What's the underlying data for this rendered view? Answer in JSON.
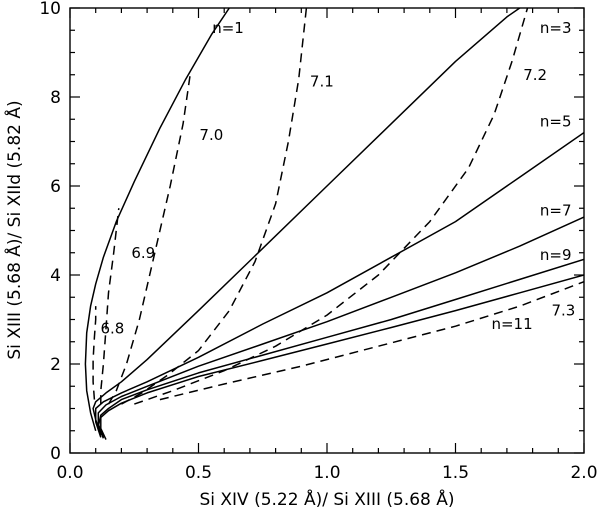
{
  "chart_data": {
    "type": "line",
    "title": "",
    "xlabel": "Si XIV (5.22 Å)/ Si XIII (5.68 Å)",
    "ylabel": "Si XIII (5.68 Å)/ Si XIId (5.82 Å)",
    "xlim": [
      0,
      2.0
    ],
    "ylim": [
      0,
      10
    ],
    "x_ticks": [
      0.0,
      0.5,
      1.0,
      1.5,
      2.0
    ],
    "x_tick_labels": [
      "0.0",
      "0.5",
      "1.0",
      "1.5",
      "2.0"
    ],
    "y_ticks": [
      0,
      2,
      4,
      6,
      8,
      10
    ],
    "y_tick_labels": [
      "0",
      "2",
      "4",
      "6",
      "8",
      "10"
    ],
    "grid": false,
    "legend": "none",
    "series": [
      {
        "group": "n",
        "label": "n=1",
        "style": "solid",
        "x": [
          0.1,
          0.08,
          0.065,
          0.06,
          0.065,
          0.08,
          0.1,
          0.13,
          0.18,
          0.25,
          0.35,
          0.45,
          0.55,
          0.62
        ],
        "y": [
          0.5,
          0.9,
          1.4,
          2.0,
          2.7,
          3.3,
          3.8,
          4.4,
          5.2,
          6.1,
          7.3,
          8.4,
          9.4,
          10.0
        ]
      },
      {
        "group": "n",
        "label": "n=3",
        "style": "solid",
        "x": [
          0.12,
          0.1,
          0.09,
          0.1,
          0.14,
          0.2,
          0.3,
          0.5,
          0.75,
          1.0,
          1.25,
          1.5,
          1.7,
          1.8
        ],
        "y": [
          0.4,
          0.75,
          1.0,
          1.15,
          1.35,
          1.6,
          2.1,
          3.2,
          4.6,
          6.0,
          7.4,
          8.8,
          9.8,
          10.2
        ]
      },
      {
        "group": "n",
        "label": "n=5",
        "style": "solid",
        "x": [
          0.12,
          0.1,
          0.1,
          0.13,
          0.2,
          0.3,
          0.5,
          0.75,
          1.0,
          1.25,
          1.5,
          1.75,
          2.0
        ],
        "y": [
          0.35,
          0.7,
          1.0,
          1.15,
          1.35,
          1.6,
          2.15,
          2.9,
          3.6,
          4.4,
          5.2,
          6.2,
          7.2
        ]
      },
      {
        "group": "n",
        "label": "n=7",
        "style": "solid",
        "x": [
          0.13,
          0.11,
          0.11,
          0.14,
          0.2,
          0.3,
          0.5,
          0.75,
          1.0,
          1.25,
          1.5,
          1.75,
          2.0
        ],
        "y": [
          0.35,
          0.65,
          0.9,
          1.08,
          1.27,
          1.5,
          1.95,
          2.45,
          2.95,
          3.5,
          4.05,
          4.65,
          5.3
        ]
      },
      {
        "group": "n",
        "label": "n=9",
        "style": "solid",
        "x": [
          0.13,
          0.11,
          0.12,
          0.15,
          0.2,
          0.3,
          0.5,
          0.75,
          1.0,
          1.25,
          1.5,
          1.75,
          2.0
        ],
        "y": [
          0.33,
          0.6,
          0.85,
          1.0,
          1.2,
          1.42,
          1.8,
          2.2,
          2.6,
          3.0,
          3.45,
          3.9,
          4.35
        ]
      },
      {
        "group": "n",
        "label": "n=11",
        "style": "solid",
        "x": [
          0.14,
          0.12,
          0.12,
          0.15,
          0.2,
          0.3,
          0.5,
          0.75,
          1.0,
          1.25,
          1.5,
          1.75,
          2.0
        ],
        "y": [
          0.3,
          0.55,
          0.8,
          0.95,
          1.12,
          1.35,
          1.72,
          2.08,
          2.45,
          2.82,
          3.2,
          3.6,
          4.0
        ]
      },
      {
        "group": "T",
        "label": "6.8",
        "style": "dashed",
        "x": [
          0.095,
          0.09,
          0.09,
          0.095,
          0.1,
          0.1
        ],
        "y": [
          1.2,
          1.6,
          2.1,
          2.6,
          3.0,
          3.3
        ]
      },
      {
        "group": "T",
        "label": "6.9",
        "style": "dashed",
        "x": [
          0.12,
          0.12,
          0.13,
          0.14,
          0.15,
          0.17,
          0.19
        ],
        "y": [
          1.1,
          1.4,
          2.0,
          2.8,
          3.6,
          4.5,
          5.5
        ]
      },
      {
        "group": "T",
        "label": "7.0",
        "style": "dashed",
        "x": [
          0.15,
          0.18,
          0.22,
          0.27,
          0.33,
          0.39,
          0.44,
          0.47
        ],
        "y": [
          1.1,
          1.4,
          2.0,
          3.0,
          4.5,
          6.0,
          7.4,
          8.6
        ]
      },
      {
        "group": "T",
        "label": "7.1",
        "style": "dashed",
        "x": [
          0.2,
          0.28,
          0.38,
          0.5,
          0.62,
          0.72,
          0.8,
          0.85,
          0.89,
          0.92
        ],
        "y": [
          1.1,
          1.35,
          1.75,
          2.3,
          3.2,
          4.3,
          5.6,
          7.0,
          8.4,
          10.0
        ]
      },
      {
        "group": "T",
        "label": "7.2",
        "style": "dashed",
        "x": [
          0.25,
          0.4,
          0.6,
          0.8,
          1.0,
          1.2,
          1.4,
          1.55,
          1.65,
          1.72,
          1.78
        ],
        "y": [
          1.1,
          1.4,
          1.85,
          2.4,
          3.1,
          4.0,
          5.2,
          6.4,
          7.6,
          8.8,
          10.0
        ]
      },
      {
        "group": "T",
        "label": "7.3",
        "style": "dashed",
        "x": [
          0.35,
          0.6,
          0.9,
          1.2,
          1.5,
          1.75,
          2.0
        ],
        "y": [
          1.2,
          1.55,
          1.95,
          2.4,
          2.85,
          3.3,
          3.85
        ]
      }
    ],
    "annotations": [
      {
        "text": "n=1",
        "x": 0.615,
        "y": 9.55
      },
      {
        "text": "n=3",
        "x": 1.89,
        "y": 9.55
      },
      {
        "text": "n=5",
        "x": 1.89,
        "y": 7.45
      },
      {
        "text": "n=7",
        "x": 1.89,
        "y": 5.45
      },
      {
        "text": "n=9",
        "x": 1.89,
        "y": 4.45
      },
      {
        "text": "n=11",
        "x": 1.72,
        "y": 2.9
      },
      {
        "text": "7.0",
        "x": 0.55,
        "y": 7.15
      },
      {
        "text": "7.1",
        "x": 0.98,
        "y": 8.35
      },
      {
        "text": "7.2",
        "x": 1.81,
        "y": 8.5
      },
      {
        "text": "6.9",
        "x": 0.285,
        "y": 4.5
      },
      {
        "text": "6.8",
        "x": 0.165,
        "y": 2.8
      },
      {
        "text": "7.3",
        "x": 1.92,
        "y": 3.2
      }
    ]
  }
}
